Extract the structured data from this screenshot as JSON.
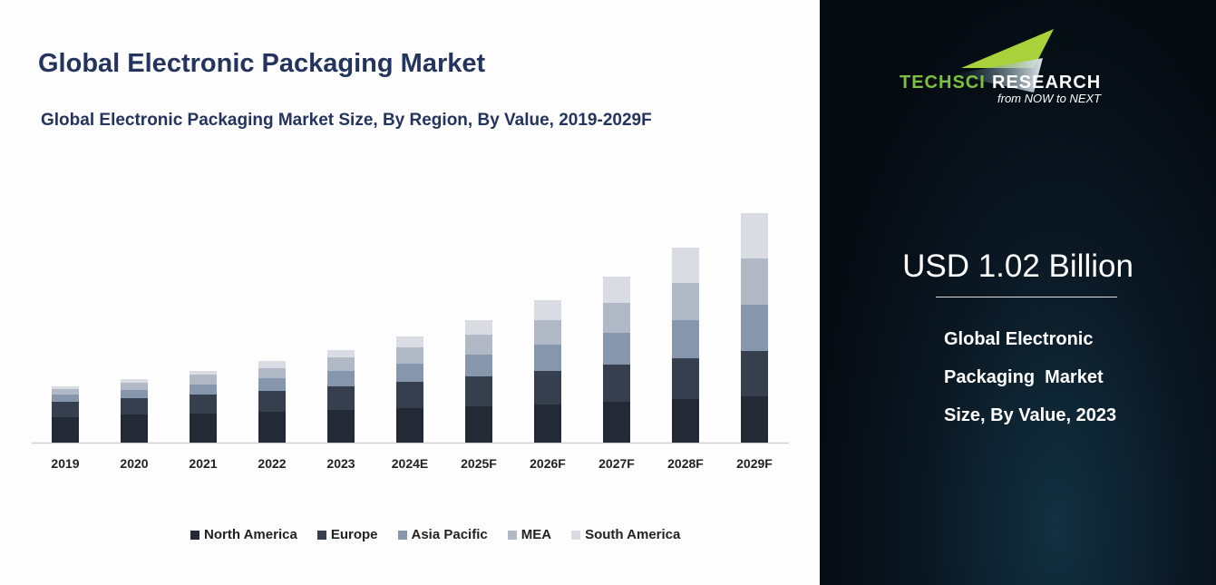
{
  "title": "Global Electronic Packaging Market",
  "chart_data": {
    "type": "bar",
    "stacked": true,
    "title": "Global Electronic Packaging Market Size, By Region, By Value, 2019-2029F",
    "xlabel": "",
    "ylabel": "",
    "categories": [
      "2019",
      "2020",
      "2021",
      "2022",
      "2023",
      "2024E",
      "2025F",
      "2026F",
      "2027F",
      "2028F",
      "2029F"
    ],
    "series": [
      {
        "name": "North America",
        "color": "#232a35",
        "values": [
          28,
          31,
          32,
          34,
          36,
          38,
          40,
          42,
          45,
          48,
          51
        ]
      },
      {
        "name": "Europe",
        "color": "#353f4e",
        "values": [
          17,
          18,
          21,
          23,
          26,
          29,
          33,
          37,
          41,
          45,
          50
        ]
      },
      {
        "name": "Asia Pacific",
        "color": "#8596ad",
        "values": [
          8,
          9,
          11,
          14,
          17,
          20,
          24,
          29,
          35,
          42,
          51
        ]
      },
      {
        "name": "MEA",
        "color": "#b1b9c6",
        "values": [
          6,
          8,
          11,
          11,
          15,
          18,
          22,
          27,
          33,
          41,
          51
        ]
      },
      {
        "name": "South America",
        "color": "#d9dce3",
        "values": [
          3,
          4,
          4,
          8,
          8,
          12,
          16,
          22,
          29,
          39,
          50
        ]
      }
    ],
    "ylim": [
      0,
      270
    ],
    "grid": false,
    "legend": "bottom"
  },
  "sidebar": {
    "brand_green": "TECHSCI",
    "brand_white": "RESEARCH",
    "tagline": "from NOW to NEXT",
    "value": "USD 1.02 Billion",
    "desc": [
      "Global Electronic",
      "Packaging  Market",
      "Size, By Value, 2023"
    ]
  }
}
